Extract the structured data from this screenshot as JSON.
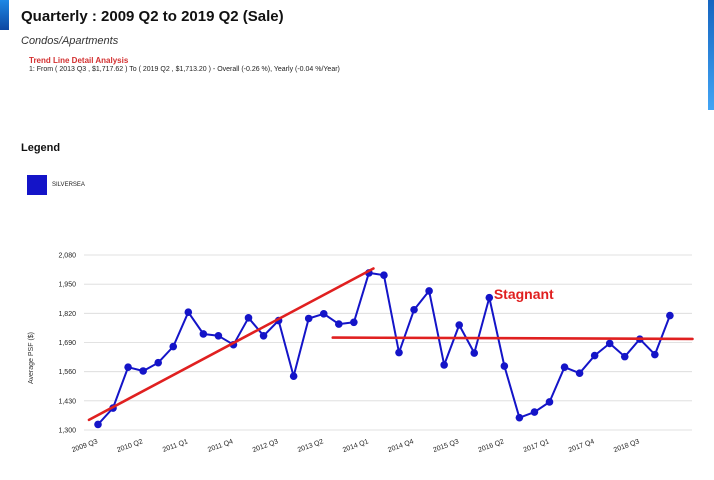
{
  "header": {
    "title": "Quarterly : 2009 Q2 to 2019 Q2 (Sale)",
    "subtitle": "Condos/Apartments",
    "trend_heading": "Trend Line Detail Analysis",
    "trend_detail": "1: From ( 2013 Q3 , $1,717.62 ) To ( 2019 Q2 , $1,713.20 ) - Overall (-0.26 %), Yearly (-0.04 %/Year)"
  },
  "legend": {
    "title": "Legend",
    "items": [
      {
        "label": "SILVERSEA",
        "color": "#1414c8"
      }
    ]
  },
  "chart_data": {
    "type": "line",
    "ylabel": "Average PSF ($)",
    "xlabel": "",
    "ylim": [
      1300,
      2080
    ],
    "yticks": [
      2080,
      1950,
      1820,
      1690,
      1560,
      1430,
      1300
    ],
    "ytick_labels": [
      "2,080",
      "1,950",
      "1,820",
      "1,690",
      "1,560",
      "1,430",
      "1,300"
    ],
    "grid": true,
    "legend_position": "top-left",
    "x_labels": [
      {
        "index": 0,
        "text": "2009 Q3"
      },
      {
        "index": 3,
        "text": "2010 Q2"
      },
      {
        "index": 6,
        "text": "2011 Q1"
      },
      {
        "index": 9,
        "text": "2011 Q4"
      },
      {
        "index": 12,
        "text": "2012 Q3"
      },
      {
        "index": 15,
        "text": "2013 Q2"
      },
      {
        "index": 18,
        "text": "2014 Q1"
      },
      {
        "index": 21,
        "text": "2014 Q4"
      },
      {
        "index": 24,
        "text": "2015 Q3"
      },
      {
        "index": 27,
        "text": "2016 Q2"
      },
      {
        "index": 30,
        "text": "2017 Q1"
      },
      {
        "index": 33,
        "text": "2017 Q4"
      },
      {
        "index": 36,
        "text": "2018 Q3"
      }
    ],
    "series": [
      {
        "name": "SILVERSEA",
        "color": "#1414c8",
        "values": [
          1325,
          1398,
          1580,
          1563,
          1600,
          1672,
          1825,
          1728,
          1720,
          1680,
          1800,
          1720,
          1788,
          1540,
          1797,
          1818,
          1772,
          1780,
          2000,
          1990,
          1645,
          1836,
          1920,
          1590,
          1768,
          1643,
          1890,
          1585,
          1355,
          1380,
          1425,
          1580,
          1553,
          1632,
          1686,
          1627,
          1705,
          1636,
          1810
        ]
      }
    ],
    "overlays": [
      {
        "kind": "line",
        "color": "#e02020",
        "from": [
          -0.6,
          1345
        ],
        "to": [
          18.3,
          2020
        ]
      },
      {
        "kind": "line",
        "color": "#e02020",
        "from": [
          15.6,
          1712
        ],
        "to": [
          39.5,
          1706
        ]
      }
    ],
    "annotations": [
      {
        "text": "Stagnant",
        "x": 26.3,
        "y": 1885,
        "color": "#e02020"
      }
    ]
  }
}
